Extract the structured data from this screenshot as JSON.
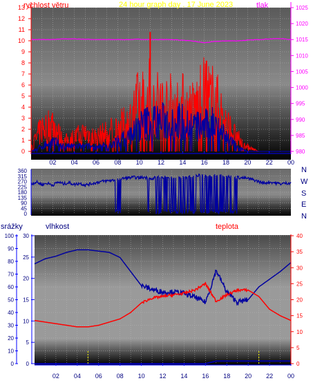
{
  "colors": {
    "red": "#ff0000",
    "blue": "#0000a0",
    "magenta": "#ff00ff",
    "title_yellow": "#ffff00",
    "axis_blue": "#0000ff",
    "label_navy": "#000080"
  },
  "chart_data": [
    {
      "type": "line",
      "panel": "wind-speed-pressure",
      "title": "24 hour graph day . 17 June 2023",
      "left_label": "rychlost větru",
      "right_label": "tlak",
      "x_ticks": [
        "02",
        "04",
        "06",
        "08",
        "10",
        "12",
        "14",
        "16",
        "18",
        "20",
        "22",
        "00"
      ],
      "x_range_hours": [
        0,
        24
      ],
      "y_left_ticks": [
        "0",
        "1",
        "2",
        "3",
        "4",
        "5",
        "6",
        "7",
        "8",
        "9",
        "10",
        "11",
        "12",
        "13"
      ],
      "y_left_range": [
        0,
        13
      ],
      "y_right_ticks": [
        "980",
        "985",
        "990",
        "995",
        "1000",
        "1005",
        "1010",
        "1015",
        "1020",
        "1025"
      ],
      "y_right_range": [
        980,
        1025
      ],
      "grid": true,
      "series": [
        {
          "name": "tlak",
          "axis": "right",
          "color": "#ff00ff",
          "x": [
            0,
            1,
            2,
            3,
            4,
            5,
            6,
            7,
            8,
            9,
            10,
            11,
            12,
            13,
            14,
            15,
            16,
            17,
            18,
            19,
            20,
            21,
            22,
            23,
            24
          ],
          "values": [
            1015,
            1015,
            1015,
            1015.2,
            1015.2,
            1015.1,
            1015,
            1015,
            1015,
            1015,
            1015.1,
            1015,
            1015,
            1015,
            1014.8,
            1014.5,
            1014,
            1014.4,
            1014.6,
            1014.6,
            1014.8,
            1015,
            1015.2,
            1015.3,
            1015
          ]
        },
        {
          "name": "gust",
          "axis": "left",
          "color": "#ff0000",
          "x": [
            0,
            1,
            2,
            3,
            4,
            5,
            6,
            7,
            8,
            9,
            10,
            11,
            12,
            13,
            14,
            15,
            16,
            17,
            18,
            19,
            20,
            21,
            22,
            23,
            24
          ],
          "values": [
            0.5,
            2.5,
            3,
            1,
            1.5,
            2,
            1.5,
            2,
            2.5,
            3,
            5.5,
            6,
            5,
            5,
            5,
            4.5,
            6,
            5.5,
            3,
            1.5,
            0.5,
            0,
            0,
            0,
            0
          ],
          "peaks": [
            {
              "x": 11,
              "value": 10.8
            },
            {
              "x": 16.2,
              "value": 8.2
            }
          ]
        },
        {
          "name": "average",
          "axis": "left",
          "color": "#0000a0",
          "x": [
            0,
            1,
            2,
            3,
            4,
            5,
            6,
            7,
            8,
            9,
            10,
            11,
            12,
            13,
            14,
            15,
            16,
            17,
            18,
            19,
            20,
            21,
            22,
            23,
            24
          ],
          "values": [
            0,
            0.5,
            1,
            0.5,
            0.5,
            0.5,
            0.5,
            0.5,
            1,
            1.5,
            2.5,
            3,
            3,
            3,
            3,
            2.5,
            2.5,
            3,
            1.5,
            0.5,
            0,
            0,
            0,
            0,
            0
          ]
        }
      ]
    },
    {
      "type": "line",
      "panel": "wind-direction",
      "y_ticks": [
        "0",
        "45",
        "90",
        "135",
        "180",
        "225",
        "270",
        "315",
        "360"
      ],
      "y_range": [
        0,
        360
      ],
      "compass": [
        "N",
        "W",
        "S",
        "E",
        "N"
      ],
      "x_range_hours": [
        0,
        24
      ],
      "grid": true,
      "series": [
        {
          "name": "direction",
          "color": "#0000a0",
          "x": [
            0,
            0.5,
            1,
            1.5,
            2,
            2.5,
            3,
            3.5,
            4,
            4.5,
            5,
            5.5,
            6,
            6.5,
            7,
            7.5,
            8,
            8.5,
            9,
            9.5,
            10,
            10.5,
            11,
            11.5,
            12,
            12.5,
            13,
            13.5,
            14,
            14.5,
            15,
            15.5,
            16,
            16.5,
            17,
            17.5,
            18,
            18.5,
            19,
            19.5,
            20,
            20.5,
            21,
            21.5,
            22,
            22.5,
            23,
            23.5,
            24
          ],
          "values": [
            250,
            265,
            245,
            255,
            240,
            265,
            250,
            260,
            245,
            255,
            240,
            250,
            260,
            270,
            275,
            280,
            285,
            295,
            300,
            305,
            300,
            305,
            295,
            300,
            310,
            305,
            300,
            310,
            305,
            310,
            315,
            320,
            310,
            320,
            315,
            320,
            310,
            315,
            305,
            300,
            295,
            285,
            270,
            255,
            265,
            260,
            250,
            255,
            260
          ]
        }
      ],
      "bands": [
        [
          7.8,
          8.3
        ],
        [
          10.8,
          19.0
        ]
      ]
    },
    {
      "type": "line",
      "panel": "rain-humidity-temperature",
      "labels": {
        "rain": "srážky",
        "humidity": "vlhkost",
        "temperature": "teplota"
      },
      "x_ticks": [
        "02",
        "04",
        "06",
        "08",
        "10",
        "12",
        "14",
        "16",
        "18",
        "20",
        "22",
        "00"
      ],
      "x_range_hours": [
        0,
        24
      ],
      "y_rain_ticks": [
        "0",
        "10",
        "20",
        "30",
        "40",
        "50",
        "60",
        "70",
        "80",
        "90",
        "100"
      ],
      "y_rain_range": [
        0,
        100
      ],
      "y_mid_ticks": [
        "0",
        "5",
        "10",
        "15",
        "20",
        "25",
        "30"
      ],
      "y_mid_range": [
        0,
        30
      ],
      "y_right_ticks": [
        "0",
        "5",
        "10",
        "15",
        "20",
        "25",
        "30",
        "35",
        "40"
      ],
      "y_right_range": [
        0,
        40
      ],
      "grid": true,
      "series": [
        {
          "name": "vlhkost",
          "color": "#0000a0",
          "x": [
            0,
            1,
            2,
            3,
            4,
            5,
            6,
            7,
            8,
            9,
            10,
            11,
            12,
            13,
            14,
            15,
            16,
            16.5,
            17,
            18,
            19,
            20,
            21,
            22,
            23,
            24
          ],
          "values": [
            78,
            82,
            84,
            87,
            89,
            89,
            88,
            87,
            83,
            72,
            61,
            58,
            56,
            56,
            55,
            52,
            48,
            60,
            73,
            56,
            48,
            50,
            60,
            66,
            72,
            79
          ]
        },
        {
          "name": "teplota",
          "color": "#ff0000",
          "x": [
            0,
            1,
            2,
            3,
            4,
            5,
            6,
            7,
            8,
            9,
            10,
            11,
            12,
            13,
            14,
            15,
            16,
            17,
            18,
            19,
            20,
            21,
            22,
            23,
            24
          ],
          "values": [
            13.5,
            13,
            12.5,
            12,
            11.5,
            11.5,
            12,
            13,
            14,
            16,
            19,
            20.5,
            21,
            21.5,
            22,
            23,
            25,
            19.5,
            21.5,
            23,
            23,
            21,
            17,
            15,
            13.5
          ]
        },
        {
          "name": "srážky",
          "color": "#0000a0",
          "x": [
            0,
            16,
            16.5,
            17,
            18,
            19,
            20,
            21,
            22,
            23,
            24
          ],
          "values": [
            0,
            0,
            1,
            2,
            2,
            2,
            2,
            2,
            2,
            2,
            2
          ]
        }
      ],
      "rain_marks_hours": [
        5,
        21
      ]
    }
  ]
}
